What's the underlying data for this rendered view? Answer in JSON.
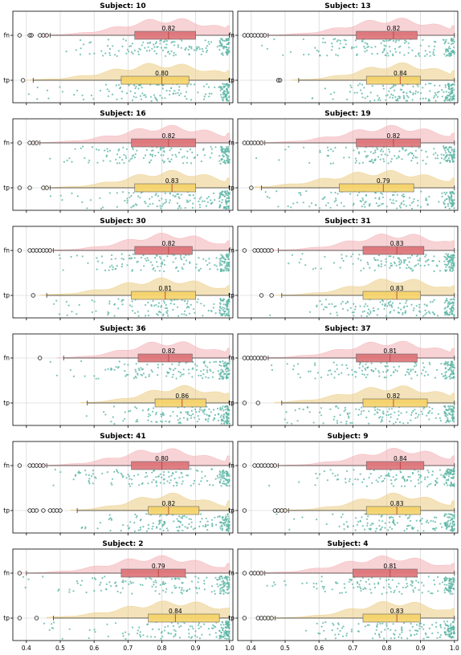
{
  "chart_data": {
    "type": "raincloud",
    "shared_x_axis": {
      "range": [
        0.36,
        1.01
      ],
      "ticks": [
        "0.4",
        "0.5",
        "0.6",
        "0.7",
        "0.8",
        "0.9",
        "1.0"
      ],
      "tick_values": [
        0.4,
        0.5,
        0.6,
        0.7,
        0.8,
        0.9,
        1.0
      ]
    },
    "categories": [
      "fn",
      "tp"
    ],
    "colors": {
      "fn": "#d9686f",
      "tp": "#f5d060",
      "fn_cloud": "#f4b6ba",
      "tp_cloud": "#ecd08c",
      "dots": "#5ab5a5",
      "grid": "#cccccc",
      "median": "#b5443e"
    },
    "grid": true,
    "panels": [
      {
        "title": "Subject: 10",
        "fn": {
          "q1": 0.72,
          "median": 0.82,
          "q3": 0.9,
          "wlo": 0.47,
          "whi": 1.0,
          "outliers": [
            0.38,
            0.41,
            0.415,
            0.44,
            0.45,
            0.46
          ],
          "label": "0.82"
        },
        "tp": {
          "q1": 0.68,
          "median": 0.8,
          "q3": 0.88,
          "wlo": 0.42,
          "whi": 1.0,
          "outliers": [
            0.39
          ],
          "label": "0.80"
        }
      },
      {
        "title": "Subject: 13",
        "fn": {
          "q1": 0.71,
          "median": 0.82,
          "q3": 0.89,
          "wlo": 0.45,
          "whi": 1.0,
          "outliers": [
            0.38,
            0.39,
            0.4,
            0.41,
            0.42,
            0.43,
            0.44
          ],
          "label": "0.82"
        },
        "tp": {
          "q1": 0.74,
          "median": 0.84,
          "q3": 0.9,
          "wlo": 0.54,
          "whi": 1.0,
          "outliers": [
            0.48,
            0.485
          ],
          "label": "0.84"
        }
      },
      {
        "title": "Subject: 16",
        "fn": {
          "q1": 0.71,
          "median": 0.82,
          "q3": 0.9,
          "wlo": 0.44,
          "whi": 1.0,
          "outliers": [
            0.38,
            0.41,
            0.42,
            0.43
          ],
          "label": "0.82"
        },
        "tp": {
          "q1": 0.72,
          "median": 0.83,
          "q3": 0.9,
          "wlo": 0.47,
          "whi": 1.0,
          "outliers": [
            0.38,
            0.41,
            0.45,
            0.46
          ],
          "label": "0.83"
        }
      },
      {
        "title": "Subject: 19",
        "fn": {
          "q1": 0.71,
          "median": 0.82,
          "q3": 0.9,
          "wlo": 0.44,
          "whi": 1.0,
          "outliers": [
            0.38,
            0.39,
            0.4,
            0.41,
            0.42,
            0.43
          ],
          "label": "0.82"
        },
        "tp": {
          "q1": 0.66,
          "median": 0.79,
          "q3": 0.88,
          "wlo": 0.43,
          "whi": 1.0,
          "outliers": [
            0.4
          ],
          "label": "0.79"
        }
      },
      {
        "title": "Subject: 30",
        "fn": {
          "q1": 0.72,
          "median": 0.82,
          "q3": 0.89,
          "wlo": 0.48,
          "whi": 1.0,
          "outliers": [
            0.38,
            0.41,
            0.42,
            0.43,
            0.44,
            0.45,
            0.46,
            0.47
          ],
          "label": "0.82"
        },
        "tp": {
          "q1": 0.71,
          "median": 0.81,
          "q3": 0.9,
          "wlo": 0.46,
          "whi": 1.0,
          "outliers": [
            0.42
          ],
          "label": "0.81"
        }
      },
      {
        "title": "Subject: 31",
        "fn": {
          "q1": 0.73,
          "median": 0.83,
          "q3": 0.91,
          "wlo": 0.48,
          "whi": 1.0,
          "outliers": [
            0.38,
            0.41,
            0.42,
            0.43,
            0.44,
            0.45,
            0.46
          ],
          "label": "0.83"
        },
        "tp": {
          "q1": 0.73,
          "median": 0.83,
          "q3": 0.9,
          "wlo": 0.49,
          "whi": 1.0,
          "outliers": [
            0.43,
            0.46
          ],
          "label": "0.83"
        }
      },
      {
        "title": "Subject: 36",
        "fn": {
          "q1": 0.73,
          "median": 0.82,
          "q3": 0.89,
          "wlo": 0.51,
          "whi": 1.0,
          "outliers": [
            0.44
          ],
          "label": "0.82"
        },
        "tp": {
          "q1": 0.78,
          "median": 0.86,
          "q3": 0.93,
          "wlo": 0.58,
          "whi": 1.0,
          "outliers": [],
          "label": "0.86"
        }
      },
      {
        "title": "Subject: 37",
        "fn": {
          "q1": 0.71,
          "median": 0.81,
          "q3": 0.89,
          "wlo": 0.45,
          "whi": 1.0,
          "outliers": [
            0.38,
            0.39,
            0.4,
            0.41,
            0.42,
            0.43,
            0.44
          ],
          "label": "0.81"
        },
        "tp": {
          "q1": 0.73,
          "median": 0.82,
          "q3": 0.92,
          "wlo": 0.49,
          "whi": 1.0,
          "outliers": [
            0.38,
            0.42
          ],
          "label": "0.82"
        }
      },
      {
        "title": "Subject: 41",
        "fn": {
          "q1": 0.71,
          "median": 0.8,
          "q3": 0.88,
          "wlo": 0.46,
          "whi": 1.0,
          "outliers": [
            0.38,
            0.41,
            0.42,
            0.43,
            0.44,
            0.45
          ],
          "label": "0.80"
        },
        "tp": {
          "q1": 0.76,
          "median": 0.82,
          "q3": 0.91,
          "wlo": 0.55,
          "whi": 1.0,
          "outliers": [
            0.41,
            0.42,
            0.43,
            0.45,
            0.47,
            0.48,
            0.49,
            0.5
          ],
          "label": "0.82"
        }
      },
      {
        "title": "Subject: 9",
        "fn": {
          "q1": 0.74,
          "median": 0.84,
          "q3": 0.91,
          "wlo": 0.48,
          "whi": 1.0,
          "outliers": [
            0.38,
            0.41,
            0.42,
            0.43,
            0.44,
            0.45,
            0.46,
            0.47
          ],
          "label": "0.84"
        },
        "tp": {
          "q1": 0.74,
          "median": 0.83,
          "q3": 0.9,
          "wlo": 0.51,
          "whi": 1.0,
          "outliers": [
            0.38,
            0.47,
            0.48,
            0.49,
            0.5
          ],
          "label": "0.83"
        }
      },
      {
        "title": "Subject: 2",
        "fn": {
          "q1": 0.68,
          "median": 0.79,
          "q3": 0.87,
          "wlo": 0.4,
          "whi": 1.0,
          "outliers": [
            0.38
          ],
          "label": "0.79"
        },
        "tp": {
          "q1": 0.76,
          "median": 0.84,
          "q3": 0.97,
          "wlo": 0.48,
          "whi": 1.0,
          "outliers": [
            0.38,
            0.43
          ],
          "label": "0.84"
        }
      },
      {
        "title": "Subject: 4",
        "fn": {
          "q1": 0.7,
          "median": 0.81,
          "q3": 0.89,
          "wlo": 0.44,
          "whi": 1.0,
          "outliers": [
            0.38,
            0.4,
            0.41,
            0.42,
            0.43
          ],
          "label": "0.81"
        },
        "tp": {
          "q1": 0.73,
          "median": 0.83,
          "q3": 0.9,
          "wlo": 0.47,
          "whi": 1.0,
          "outliers": [
            0.38,
            0.42,
            0.43,
            0.44,
            0.45,
            0.46
          ],
          "label": "0.83"
        }
      }
    ]
  }
}
